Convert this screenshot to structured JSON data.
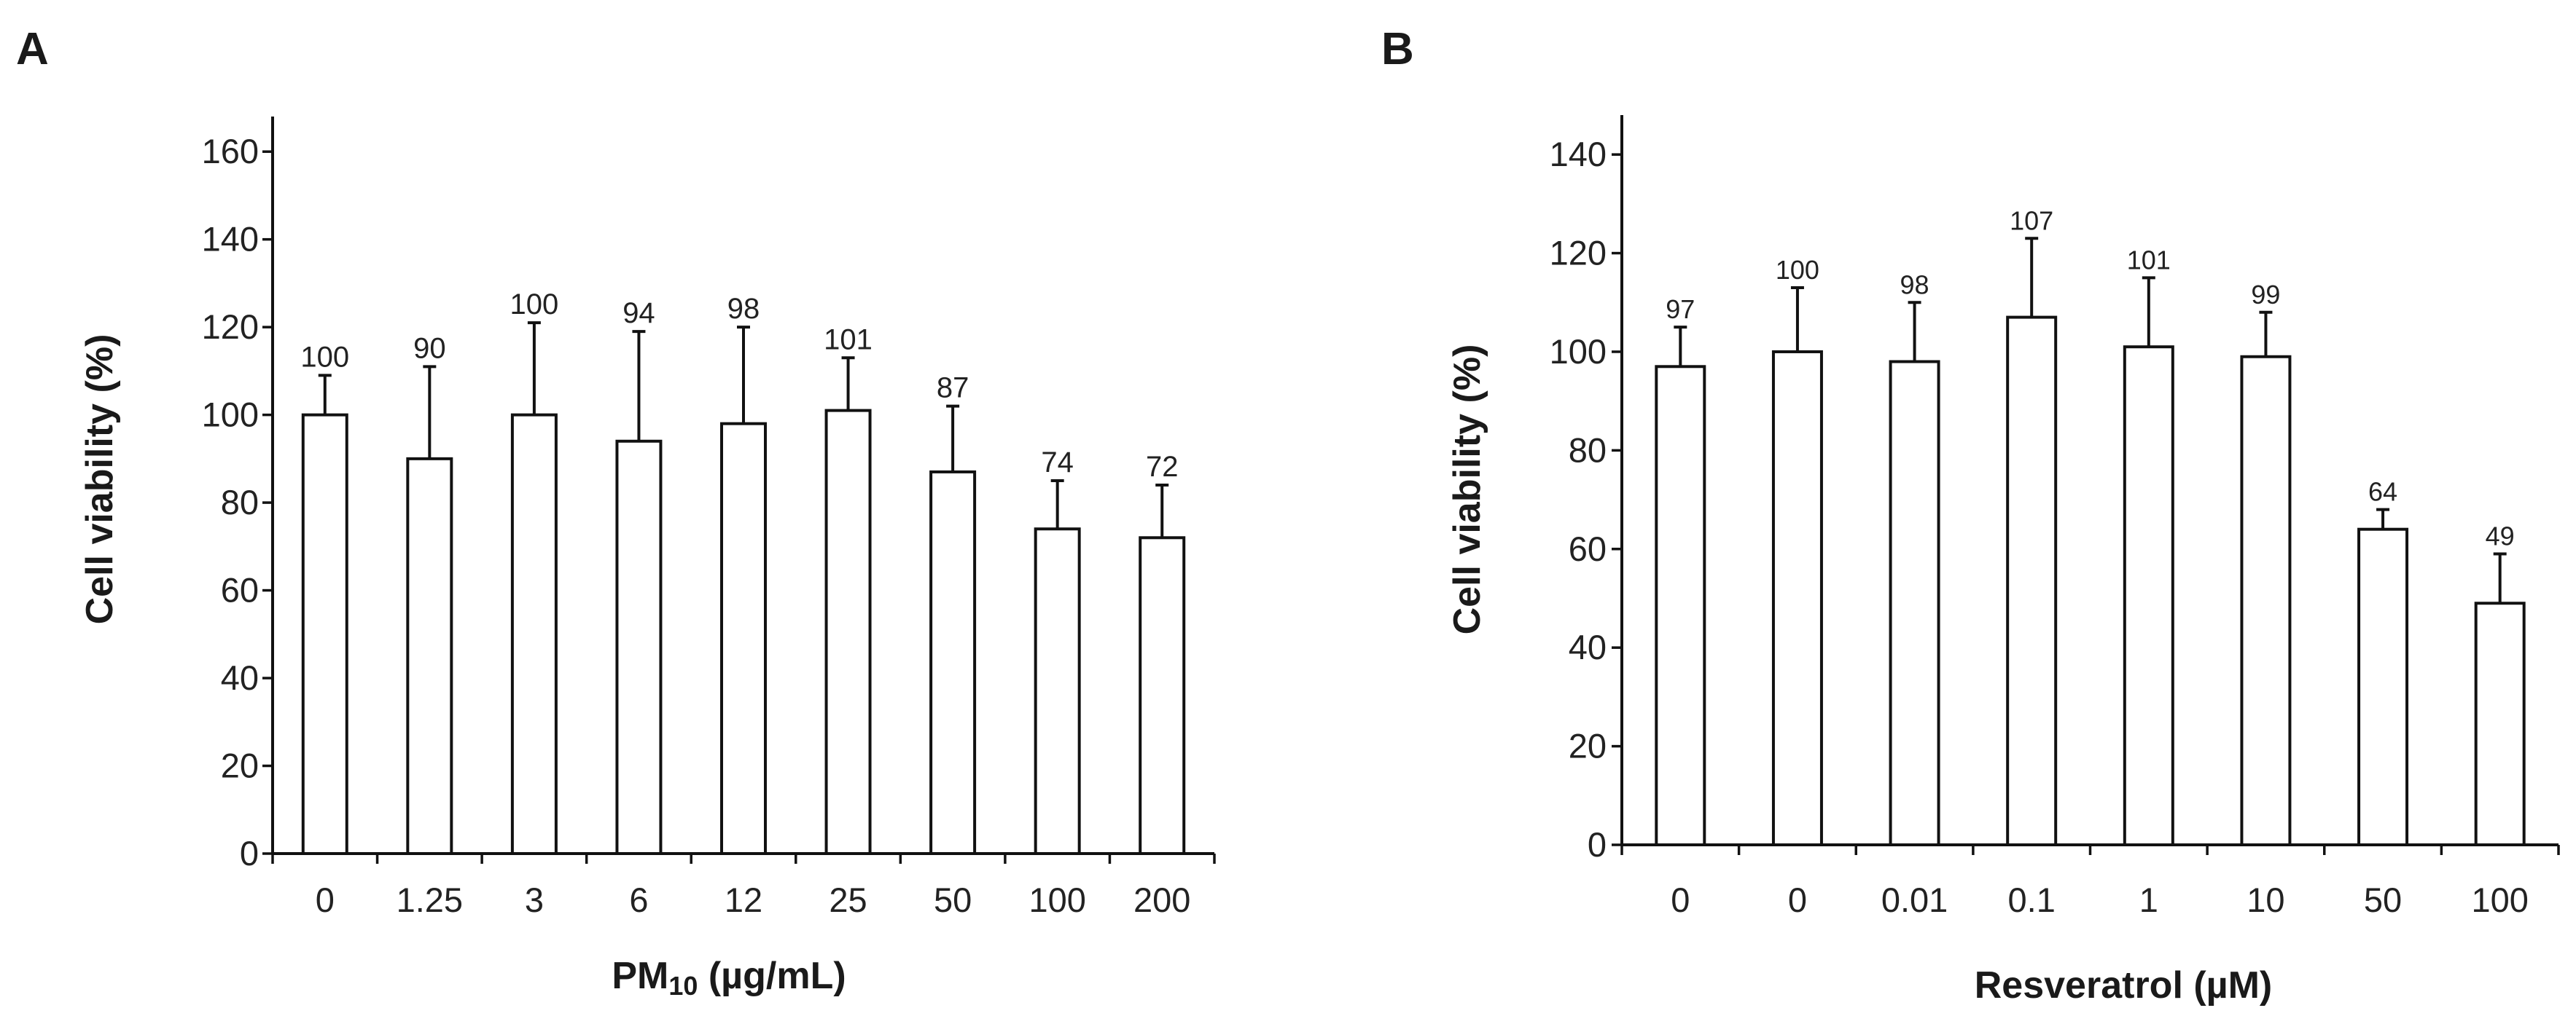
{
  "chart_data": [
    {
      "panel": "A",
      "type": "bar",
      "categories": [
        "0",
        "1.25",
        "3",
        "6",
        "12",
        "25",
        "50",
        "100",
        "200"
      ],
      "values": [
        100,
        90,
        100,
        94,
        98,
        101,
        87,
        74,
        72
      ],
      "data_labels": [
        "100",
        "90",
        "100",
        "94",
        "98",
        "101",
        "87",
        "74",
        "72"
      ],
      "error_upper": [
        109,
        111,
        121,
        119,
        120,
        113,
        102,
        85,
        84
      ],
      "ylabel": "Cell viability (%)",
      "xlabel_main": "PM",
      "xlabel_sub": "10",
      "xlabel_tail": " (µg/mL)",
      "ylim": [
        0,
        168
      ],
      "yticks": [
        0,
        20,
        40,
        60,
        80,
        100,
        120,
        140,
        160
      ],
      "ytick_labels": [
        "0",
        "20",
        "40",
        "60",
        "80",
        "100",
        "120",
        "140",
        "160"
      ],
      "grid": false,
      "bar_color": "#ffffff",
      "edge_color": "#111111"
    },
    {
      "panel": "B",
      "type": "bar",
      "categories": [
        "0",
        "0",
        "0.01",
        "0.1",
        "1",
        "10",
        "50",
        "100"
      ],
      "values": [
        97,
        100,
        98,
        107,
        101,
        99,
        64,
        49
      ],
      "data_labels": [
        "97",
        "100",
        "98",
        "107",
        "101",
        "99",
        "64",
        "49"
      ],
      "error_upper": [
        105,
        113,
        110,
        123,
        115,
        108,
        68,
        59
      ],
      "ylabel": "Cell viability (%)",
      "xlabel": "Resveratrol (µM)",
      "ylim": [
        0,
        148
      ],
      "yticks": [
        0,
        20,
        40,
        60,
        80,
        100,
        120,
        140
      ],
      "ytick_labels": [
        "0",
        "20",
        "40",
        "60",
        "80",
        "100",
        "120",
        "140"
      ],
      "grid": false,
      "bar_color": "#ffffff",
      "edge_color": "#111111"
    }
  ]
}
